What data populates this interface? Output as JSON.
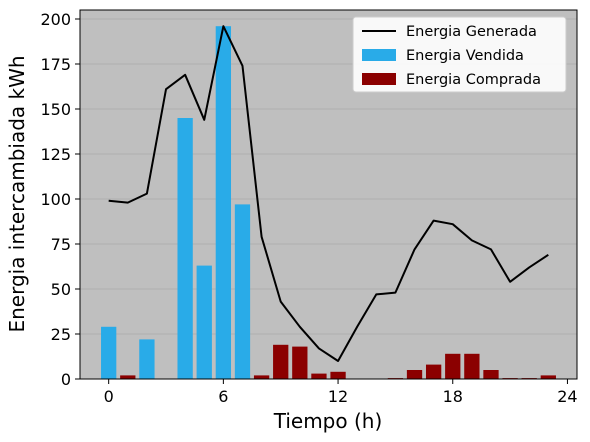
{
  "chart_data": {
    "type": "bar",
    "title": "",
    "xlabel": "Tiempo (h)",
    "ylabel": "Energia intercambiada kWh",
    "xlim": [
      -1.5,
      24.5
    ],
    "ylim": [
      0,
      205
    ],
    "x_ticks": [
      0,
      6,
      12,
      18,
      24
    ],
    "y_ticks": [
      0,
      25,
      50,
      75,
      100,
      125,
      150,
      175,
      200
    ],
    "grid": "horizontal",
    "legend_position": "top-right",
    "background": "#bfbfbf",
    "x": [
      0,
      1,
      2,
      3,
      4,
      5,
      6,
      7,
      8,
      9,
      10,
      11,
      12,
      13,
      14,
      15,
      16,
      17,
      18,
      19,
      20,
      21,
      22,
      23
    ],
    "series": [
      {
        "name": "Energia Generada",
        "kind": "line",
        "color": "#000000",
        "values": [
          99,
          98,
          103,
          161,
          169,
          144,
          196,
          174,
          79,
          43,
          29,
          17,
          10,
          29,
          47,
          48,
          72,
          88,
          86,
          77,
          72,
          54,
          62,
          69
        ]
      },
      {
        "name": "Energia Vendida",
        "kind": "bar",
        "color": "#29abe8",
        "values": [
          29,
          0,
          22,
          0,
          145,
          63,
          196,
          97,
          0,
          0,
          0,
          0,
          0,
          0,
          0,
          0,
          0,
          0,
          0,
          0,
          0,
          0,
          0,
          0
        ]
      },
      {
        "name": "Energia Comprada",
        "kind": "bar",
        "color": "#8b0000",
        "values": [
          0,
          2,
          0,
          0,
          0,
          0,
          0,
          0,
          2,
          19,
          18,
          3,
          4,
          0,
          0,
          0.5,
          5,
          8,
          14,
          14,
          5,
          0.5,
          0.5,
          2
        ]
      }
    ]
  }
}
